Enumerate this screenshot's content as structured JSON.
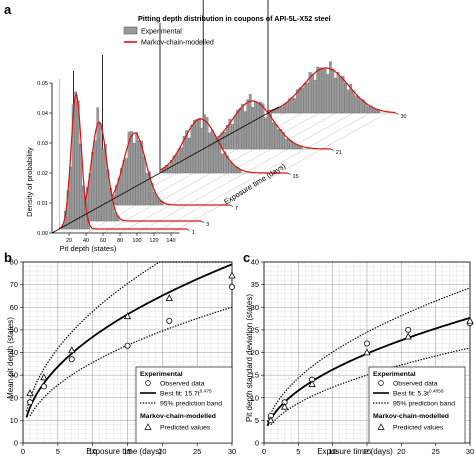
{
  "panel_labels": [
    "a",
    "b",
    "c"
  ],
  "chart_data": [
    {
      "panel": "a",
      "type": "bar",
      "title": "Pitting depth distribution in coupons of API-5L-X52 steel",
      "xlabel": "Pit depth (states)",
      "ylabel": "Density of probability",
      "zlabel": "Exposure time (days)",
      "x_ticks": [
        "20",
        "40",
        "60",
        "80",
        "100",
        "120",
        "140"
      ],
      "y_ticks": [
        "0.00",
        "0.01",
        "0.02",
        "0.03",
        "0.04",
        "0.05"
      ],
      "z_ticks": [
        "1",
        "3",
        "7",
        "15",
        "21",
        "30"
      ],
      "legend": [
        "Experimental",
        "Markov-chain-modelled"
      ],
      "colors": {
        "experimental": "#9a9a9a",
        "model": "#dd1111"
      },
      "series": [
        {
          "exposure_days": 1,
          "mean": 20,
          "sd": 6,
          "peak": 0.045
        },
        {
          "exposure_days": 3,
          "mean": 30,
          "sd": 9,
          "peak": 0.033
        },
        {
          "exposure_days": 7,
          "mean": 38,
          "sd": 13,
          "peak": 0.024
        },
        {
          "exposure_days": 15,
          "mean": 48,
          "sd": 20,
          "peak": 0.018
        },
        {
          "exposure_days": 21,
          "mean": 58,
          "sd": 24,
          "peak": 0.016
        },
        {
          "exposure_days": 30,
          "mean": 68,
          "sd": 27,
          "peak": 0.015
        }
      ]
    },
    {
      "panel": "b",
      "type": "scatter",
      "xlabel": "Exposure time (days)",
      "ylabel": "Mean pit depth (states)",
      "xlim": [
        0,
        30
      ],
      "ylim": [
        0,
        80
      ],
      "x_ticks": [
        "0",
        "5",
        "10",
        "15",
        "20",
        "25",
        "30"
      ],
      "y_ticks": [
        "0",
        "10",
        "20",
        "30",
        "40",
        "50",
        "60",
        "70",
        "80"
      ],
      "legend": {
        "experimental_heading": "Experimental",
        "observed": "Observed data",
        "fit_text": "Best fit: 15.7t",
        "fit_exp": "0.475",
        "band": "95% prediction band",
        "model_heading": "Markov-chain-modelled",
        "predicted": "Predicted values"
      },
      "fit": {
        "coef": 15.7,
        "exp": 0.475,
        "band_upper_factor": 1.24,
        "band_lower_factor": 0.76
      },
      "observed": [
        [
          1,
          18
        ],
        [
          3,
          25
        ],
        [
          7,
          37
        ],
        [
          15,
          43
        ],
        [
          21,
          54
        ],
        [
          30,
          69
        ]
      ],
      "predicted": [
        [
          1,
          22
        ],
        [
          3,
          29
        ],
        [
          7,
          41
        ],
        [
          15,
          56
        ],
        [
          21,
          64
        ],
        [
          30,
          74
        ]
      ]
    },
    {
      "panel": "c",
      "type": "scatter",
      "xlabel": "Exposure time (days)",
      "ylabel": "Pit depth standard deviation (states)",
      "xlim": [
        0,
        30
      ],
      "ylim": [
        0,
        40
      ],
      "x_ticks": [
        "0",
        "5",
        "10",
        "15",
        "20",
        "25",
        "30"
      ],
      "y_ticks": [
        "0",
        "5",
        "10",
        "15",
        "20",
        "25",
        "30",
        "35",
        "40"
      ],
      "legend": {
        "experimental_heading": "Experimental",
        "observed": "Observed data",
        "fit_text": "Best fit: 5.3t",
        "fit_exp": "0.4856",
        "band": "95% prediction band",
        "model_heading": "Markov-chain-modelled",
        "predicted": "Predicted values"
      },
      "fit": {
        "coef": 5.3,
        "exp": 0.4856,
        "band_upper_factor": 1.24,
        "band_lower_factor": 0.76
      },
      "observed": [
        [
          1,
          6
        ],
        [
          3,
          9
        ],
        [
          7,
          14
        ],
        [
          15,
          22
        ],
        [
          21,
          25
        ],
        [
          30,
          26.5
        ]
      ],
      "predicted": [
        [
          1,
          5
        ],
        [
          3,
          8
        ],
        [
          7,
          13
        ],
        [
          15,
          20
        ],
        [
          21,
          23.5
        ],
        [
          30,
          27
        ]
      ]
    }
  ]
}
